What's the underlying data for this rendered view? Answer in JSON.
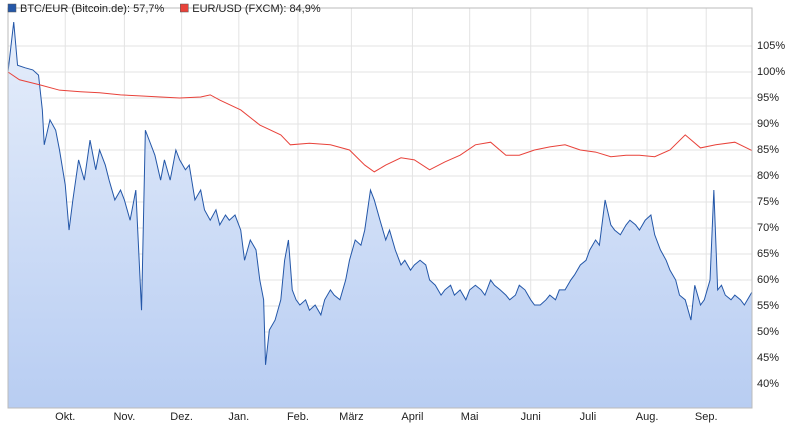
{
  "chart_data": {
    "type": "line",
    "series": [
      {
        "name": "BTC/EUR (Bitcoin.de): 57,7%",
        "color": "#2457a8",
        "fill": true,
        "x": [
          0,
          3,
          5,
          9,
          13,
          16,
          18,
          19,
          22,
          25,
          27,
          30,
          32,
          34,
          37,
          40,
          43,
          46,
          48,
          51,
          53,
          56,
          59,
          61,
          64,
          67,
          68,
          70,
          72,
          74,
          77,
          80,
          82,
          85,
          88,
          90,
          93,
          95,
          98,
          101,
          103,
          106,
          109,
          111,
          114,
          116,
          119,
          122,
          124,
          127,
          130,
          132,
          134,
          135,
          137,
          140,
          143,
          145,
          147,
          149,
          151,
          153,
          156,
          158,
          161,
          164,
          166,
          169,
          171,
          174,
          177,
          179,
          182,
          185,
          187,
          190,
          192,
          195,
          198,
          200,
          203,
          206,
          208,
          211,
          213,
          216,
          219,
          221,
          224,
          227,
          229,
          232,
          234,
          237,
          240,
          242,
          245,
          248,
          250,
          253,
          255,
          258,
          261,
          263,
          266,
          268,
          271,
          274,
          276,
          279,
          282,
          284,
          287,
          289,
          292,
          295,
          297,
          300,
          303,
          305,
          308,
          310,
          313,
          316,
          318,
          321,
          324,
          326,
          329,
          331,
          334,
          337,
          339,
          342,
          345,
          347,
          350,
          352,
          355,
          358,
          360,
          363,
          365,
          368,
          370,
          372,
          374,
          376,
          379,
          381,
          384,
          386,
          390
        ],
        "values": [
          100,
          109.6,
          101.3,
          100.8,
          100.4,
          99.4,
          92.7,
          86.0,
          90.8,
          88.8,
          85.0,
          78.3,
          69.6,
          75.4,
          83.1,
          79.2,
          86.9,
          81.2,
          85.0,
          82.1,
          79.2,
          75.4,
          77.3,
          75.4,
          71.5,
          77.3,
          69.6,
          54.2,
          88.8,
          86.9,
          84.0,
          79.2,
          83.1,
          79.2,
          85.0,
          83.1,
          81.2,
          82.1,
          75.4,
          77.3,
          73.5,
          71.5,
          73.5,
          70.6,
          72.5,
          71.5,
          72.5,
          69.6,
          63.8,
          67.7,
          65.8,
          60.0,
          56.2,
          43.7,
          50.4,
          52.3,
          56.2,
          63.8,
          67.7,
          58.1,
          56.2,
          55.2,
          56.2,
          54.2,
          55.2,
          53.3,
          56.2,
          58.1,
          57.1,
          56.2,
          60.0,
          63.8,
          67.7,
          66.7,
          69.6,
          77.3,
          75.4,
          71.5,
          67.7,
          69.6,
          65.8,
          62.9,
          63.8,
          61.9,
          62.9,
          63.8,
          62.9,
          60.0,
          59.0,
          57.1,
          58.1,
          59.0,
          57.1,
          58.1,
          56.2,
          58.1,
          59.0,
          58.1,
          57.1,
          60.0,
          59.0,
          58.1,
          57.1,
          56.2,
          57.1,
          59.0,
          58.1,
          56.2,
          55.2,
          55.2,
          56.2,
          57.1,
          56.2,
          58.1,
          58.1,
          60.0,
          61.0,
          62.9,
          63.8,
          65.8,
          67.7,
          66.7,
          75.4,
          70.6,
          69.6,
          68.7,
          70.6,
          71.5,
          70.6,
          69.6,
          71.5,
          72.5,
          68.7,
          65.8,
          63.8,
          61.9,
          60.0,
          57.1,
          56.2,
          52.3,
          59.0,
          55.2,
          56.2,
          60.0,
          77.3,
          58.1,
          59.0,
          57.1,
          56.2,
          57.1,
          56.2,
          55.2,
          57.7
        ]
      },
      {
        "name": "EUR/USD (FXCM): 84,9%",
        "color": "#e8423a",
        "fill": false,
        "x": [
          0,
          6,
          17,
          27,
          38,
          48,
          59,
          69,
          80,
          90,
          101,
          106,
          111,
          122,
          132,
          143,
          148,
          158,
          169,
          179,
          187,
          192,
          198,
          206,
          213,
          221,
          229,
          237,
          245,
          253,
          261,
          268,
          276,
          284,
          292,
          300,
          308,
          316,
          324,
          331,
          339,
          347,
          355,
          363,
          371,
          381,
          390
        ],
        "values": [
          100,
          98.5,
          97.5,
          96.5,
          96.2,
          96.0,
          95.6,
          95.4,
          95.2,
          95.0,
          95.2,
          95.6,
          94.6,
          92.7,
          89.8,
          87.9,
          86.0,
          86.3,
          86.0,
          85.0,
          82.1,
          80.8,
          82.1,
          83.5,
          83.1,
          81.2,
          82.7,
          84.0,
          86.0,
          86.5,
          84.0,
          84.0,
          85.0,
          85.6,
          86.0,
          85.0,
          84.6,
          83.7,
          84.0,
          84.0,
          83.7,
          85.0,
          87.9,
          85.4,
          86.0,
          86.5,
          84.9
        ]
      }
    ],
    "xlim": [
      0,
      390
    ],
    "xticks": [
      {
        "value": 30,
        "label": "Okt."
      },
      {
        "value": 61,
        "label": "Nov."
      },
      {
        "value": 91,
        "label": "Dez."
      },
      {
        "value": 121,
        "label": "Jan."
      },
      {
        "value": 152,
        "label": "Feb."
      },
      {
        "value": 180,
        "label": "März"
      },
      {
        "value": 212,
        "label": "April"
      },
      {
        "value": 242,
        "label": "Mai"
      },
      {
        "value": 274,
        "label": "Juni"
      },
      {
        "value": 304,
        "label": "Juli"
      },
      {
        "value": 335,
        "label": "Aug."
      },
      {
        "value": 366,
        "label": "Sep."
      }
    ],
    "ylim": [
      35.4,
      112.3
    ],
    "yticks": [
      {
        "value": 40,
        "label": "40%"
      },
      {
        "value": 45,
        "label": "45%"
      },
      {
        "value": 50,
        "label": "50%"
      },
      {
        "value": 55,
        "label": "55%"
      },
      {
        "value": 60,
        "label": "60%"
      },
      {
        "value": 65,
        "label": "65%"
      },
      {
        "value": 70,
        "label": "70%"
      },
      {
        "value": 75,
        "label": "75%"
      },
      {
        "value": 80,
        "label": "80%"
      },
      {
        "value": 85,
        "label": "85%"
      },
      {
        "value": 90,
        "label": "90%"
      },
      {
        "value": 95,
        "label": "95%"
      },
      {
        "value": 100,
        "label": "100%"
      },
      {
        "value": 105,
        "label": "105%"
      }
    ],
    "grid": true
  }
}
